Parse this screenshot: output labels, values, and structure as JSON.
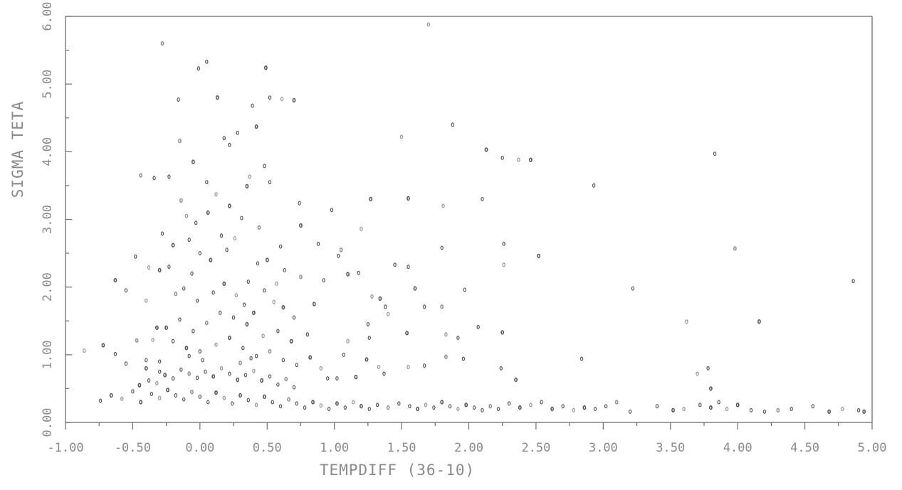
{
  "chart_data": {
    "type": "scatter",
    "title": "",
    "xlabel": "TEMPDIFF (36-10)",
    "ylabel": "SIGMA TETA",
    "xlim": [
      -1.0,
      5.0
    ],
    "ylim": [
      0.0,
      6.0
    ],
    "x_ticks": [
      "-1.00",
      "-0.50",
      "0.00",
      "0.50",
      "1.00",
      "1.50",
      "2.00",
      "2.50",
      "3.00",
      "3.50",
      "4.00",
      "4.50",
      "5.00"
    ],
    "y_ticks": [
      "0.00",
      "1.00",
      "2.00",
      "3.00",
      "4.00",
      "5.00",
      "6.00"
    ],
    "grid": false,
    "legend": "none",
    "point_color": "#3a3a3a",
    "series": [
      {
        "points": [
          [
            -0.28,
            5.6
          ],
          [
            -0.01,
            5.23
          ],
          [
            0.05,
            5.33
          ],
          [
            0.49,
            5.24
          ],
          [
            1.7,
            5.88
          ],
          [
            0.52,
            4.8
          ],
          [
            0.13,
            4.8
          ],
          [
            0.39,
            4.68
          ],
          [
            0.61,
            4.78
          ],
          [
            0.7,
            4.76
          ],
          [
            -0.16,
            4.77
          ],
          [
            0.18,
            4.2
          ],
          [
            -0.15,
            4.16
          ],
          [
            0.22,
            4.1
          ],
          [
            0.28,
            4.28
          ],
          [
            0.42,
            4.37
          ],
          [
            1.5,
            4.22
          ],
          [
            1.88,
            4.4
          ],
          [
            2.13,
            4.03
          ],
          [
            2.25,
            3.91
          ],
          [
            2.37,
            3.88
          ],
          [
            2.46,
            3.88
          ],
          [
            3.83,
            3.97
          ],
          [
            2.93,
            3.5
          ],
          [
            3.98,
            2.57
          ],
          [
            4.86,
            2.09
          ],
          [
            3.22,
            1.98
          ],
          [
            4.16,
            1.49
          ],
          [
            3.62,
            1.49
          ],
          [
            2.84,
            0.94
          ],
          [
            -0.05,
            3.85
          ],
          [
            0.48,
            3.79
          ],
          [
            0.37,
            3.63
          ],
          [
            0.35,
            3.49
          ],
          [
            0.52,
            3.55
          ],
          [
            -0.34,
            3.61
          ],
          [
            -0.44,
            3.65
          ],
          [
            -0.23,
            3.63
          ],
          [
            0.74,
            3.24
          ],
          [
            1.55,
            3.31
          ],
          [
            1.81,
            3.2
          ],
          [
            2.1,
            3.3
          ],
          [
            1.27,
            3.3
          ],
          [
            0.98,
            3.14
          ],
          [
            1.2,
            2.86
          ],
          [
            0.75,
            2.91
          ],
          [
            0.88,
            2.64
          ],
          [
            1.03,
            2.46
          ],
          [
            1.05,
            2.55
          ],
          [
            1.8,
            2.58
          ],
          [
            2.26,
            2.64
          ],
          [
            2.52,
            2.46
          ],
          [
            2.26,
            2.33
          ],
          [
            1.45,
            2.33
          ],
          [
            1.1,
            2.19
          ],
          [
            1.18,
            2.21
          ],
          [
            1.28,
            1.86
          ],
          [
            1.34,
            1.83
          ],
          [
            1.38,
            1.71
          ],
          [
            1.67,
            1.71
          ],
          [
            1.8,
            1.71
          ],
          [
            1.97,
            1.96
          ],
          [
            2.07,
            1.41
          ],
          [
            2.25,
            1.33
          ],
          [
            1.83,
            1.3
          ],
          [
            1.92,
            1.25
          ],
          [
            1.54,
            1.32
          ],
          [
            1.26,
            1.25
          ],
          [
            1.33,
            0.82
          ],
          [
            1.24,
            0.93
          ],
          [
            1.07,
            1.0
          ],
          [
            1.67,
            0.84
          ],
          [
            1.83,
            0.97
          ],
          [
            1.96,
            0.94
          ],
          [
            2.24,
            0.8
          ],
          [
            2.35,
            0.63
          ],
          [
            1.55,
            0.82
          ],
          [
            1.37,
            0.72
          ],
          [
            1.16,
            0.67
          ],
          [
            1.02,
            0.65
          ],
          [
            -0.86,
            1.06
          ],
          [
            -0.72,
            1.14
          ],
          [
            -0.63,
            1.01
          ],
          [
            -0.55,
            0.87
          ],
          [
            -0.47,
            1.21
          ],
          [
            -0.4,
            0.92
          ],
          [
            -0.3,
            0.75
          ],
          [
            -0.32,
            1.4
          ],
          [
            -0.4,
            1.8
          ],
          [
            -0.48,
            2.45
          ],
          [
            -0.63,
            2.1
          ],
          [
            -0.55,
            1.95
          ],
          [
            -0.38,
            2.29
          ],
          [
            -0.3,
            2.25
          ],
          [
            -0.23,
            2.3
          ],
          [
            -0.28,
            2.79
          ],
          [
            -0.14,
            3.28
          ],
          [
            -0.08,
            2.7
          ],
          [
            -0.03,
            2.95
          ],
          [
            0.06,
            3.1
          ],
          [
            0.12,
            3.37
          ],
          [
            0.16,
            2.76
          ],
          [
            0.22,
            3.2
          ],
          [
            0.31,
            3.02
          ],
          [
            0.26,
            2.72
          ],
          [
            0.08,
            2.4
          ],
          [
            -0.06,
            2.2
          ],
          [
            -0.12,
            1.98
          ],
          [
            -0.18,
            1.9
          ],
          [
            -0.02,
            1.8
          ],
          [
            0.1,
            1.92
          ],
          [
            0.18,
            2.05
          ],
          [
            0.27,
            1.88
          ],
          [
            0.33,
            1.74
          ],
          [
            0.4,
            1.62
          ],
          [
            0.48,
            1.95
          ],
          [
            0.55,
            1.78
          ],
          [
            0.62,
            1.7
          ],
          [
            0.7,
            1.55
          ],
          [
            0.63,
            2.25
          ],
          [
            0.75,
            2.15
          ],
          [
            0.43,
            2.35
          ],
          [
            0.36,
            2.08
          ],
          [
            0.5,
            2.4
          ],
          [
            0.57,
            2.05
          ],
          [
            0.8,
            1.3
          ],
          [
            0.68,
            1.2
          ],
          [
            0.58,
            1.35
          ],
          [
            0.47,
            1.28
          ],
          [
            0.35,
            1.45
          ],
          [
            0.25,
            1.55
          ],
          [
            0.15,
            1.62
          ],
          [
            0.05,
            1.47
          ],
          [
            -0.05,
            1.35
          ],
          [
            -0.15,
            1.52
          ],
          [
            -0.25,
            1.4
          ],
          [
            -0.35,
            1.22
          ],
          [
            -0.2,
            1.2
          ],
          [
            -0.1,
            1.1
          ],
          [
            0.0,
            1.05
          ],
          [
            0.12,
            1.15
          ],
          [
            0.22,
            1.25
          ],
          [
            0.32,
            1.1
          ],
          [
            0.42,
            0.98
          ],
          [
            0.52,
            1.05
          ],
          [
            0.62,
            0.92
          ],
          [
            0.72,
            0.85
          ],
          [
            0.82,
            0.96
          ],
          [
            0.9,
            0.8
          ],
          [
            0.95,
            0.65
          ],
          [
            -0.45,
            0.55
          ],
          [
            -0.38,
            0.62
          ],
          [
            -0.32,
            0.58
          ],
          [
            -0.26,
            0.7
          ],
          [
            -0.2,
            0.65
          ],
          [
            -0.14,
            0.78
          ],
          [
            -0.08,
            0.72
          ],
          [
            -0.02,
            0.66
          ],
          [
            0.04,
            0.75
          ],
          [
            0.1,
            0.68
          ],
          [
            0.16,
            0.8
          ],
          [
            0.22,
            0.72
          ],
          [
            0.28,
            0.63
          ],
          [
            0.34,
            0.7
          ],
          [
            0.4,
            0.76
          ],
          [
            0.46,
            0.62
          ],
          [
            0.52,
            0.68
          ],
          [
            0.58,
            0.56
          ],
          [
            0.64,
            0.64
          ],
          [
            0.7,
            0.52
          ],
          [
            -0.74,
            0.32
          ],
          [
            -0.66,
            0.4
          ],
          [
            -0.58,
            0.35
          ],
          [
            -0.5,
            0.46
          ],
          [
            -0.44,
            0.3
          ],
          [
            -0.36,
            0.42
          ],
          [
            -0.3,
            0.36
          ],
          [
            -0.24,
            0.48
          ],
          [
            -0.18,
            0.4
          ],
          [
            -0.12,
            0.34
          ],
          [
            -0.06,
            0.45
          ],
          [
            0.0,
            0.38
          ],
          [
            0.06,
            0.3
          ],
          [
            0.12,
            0.44
          ],
          [
            0.18,
            0.36
          ],
          [
            0.24,
            0.28
          ],
          [
            0.3,
            0.4
          ],
          [
            0.36,
            0.33
          ],
          [
            0.42,
            0.26
          ],
          [
            0.48,
            0.38
          ],
          [
            0.54,
            0.3
          ],
          [
            0.6,
            0.24
          ],
          [
            0.66,
            0.34
          ],
          [
            0.72,
            0.28
          ],
          [
            0.78,
            0.22
          ],
          [
            0.84,
            0.3
          ],
          [
            0.9,
            0.25
          ],
          [
            0.96,
            0.2
          ],
          [
            1.02,
            0.28
          ],
          [
            1.08,
            0.22
          ],
          [
            1.14,
            0.3
          ],
          [
            1.2,
            0.24
          ],
          [
            1.26,
            0.2
          ],
          [
            1.32,
            0.26
          ],
          [
            1.4,
            0.22
          ],
          [
            1.48,
            0.28
          ],
          [
            1.56,
            0.24
          ],
          [
            1.62,
            0.2
          ],
          [
            1.68,
            0.26
          ],
          [
            1.74,
            0.22
          ],
          [
            1.8,
            0.3
          ],
          [
            1.86,
            0.24
          ],
          [
            1.92,
            0.2
          ],
          [
            1.98,
            0.26
          ],
          [
            2.04,
            0.22
          ],
          [
            2.1,
            0.18
          ],
          [
            2.16,
            0.24
          ],
          [
            2.22,
            0.2
          ],
          [
            2.3,
            0.28
          ],
          [
            2.38,
            0.22
          ],
          [
            2.46,
            0.26
          ],
          [
            2.54,
            0.3
          ],
          [
            2.62,
            0.2
          ],
          [
            2.7,
            0.24
          ],
          [
            2.78,
            0.18
          ],
          [
            2.86,
            0.22
          ],
          [
            2.94,
            0.2
          ],
          [
            3.02,
            0.24
          ],
          [
            3.1,
            0.3
          ],
          [
            3.2,
            0.16
          ],
          [
            3.4,
            0.24
          ],
          [
            3.52,
            0.18
          ],
          [
            3.6,
            0.2
          ],
          [
            3.72,
            0.26
          ],
          [
            3.8,
            0.22
          ],
          [
            3.86,
            0.3
          ],
          [
            3.92,
            0.2
          ],
          [
            4.0,
            0.26
          ],
          [
            4.1,
            0.18
          ],
          [
            4.2,
            0.16
          ],
          [
            4.3,
            0.18
          ],
          [
            4.4,
            0.2
          ],
          [
            4.56,
            0.24
          ],
          [
            4.68,
            0.16
          ],
          [
            4.78,
            0.2
          ],
          [
            4.9,
            0.18
          ],
          [
            4.94,
            0.16
          ],
          [
            3.78,
            0.8
          ],
          [
            3.7,
            0.72
          ],
          [
            3.8,
            0.5
          ],
          [
            0.02,
            0.92
          ],
          [
            -0.08,
            0.98
          ],
          [
            0.3,
            0.88
          ],
          [
            0.38,
            0.95
          ],
          [
            -0.3,
            0.9
          ],
          [
            -0.4,
            0.8
          ],
          [
            1.4,
            1.6
          ],
          [
            1.55,
            2.3
          ],
          [
            1.6,
            1.98
          ],
          [
            1.25,
            1.45
          ],
          [
            1.1,
            1.2
          ],
          [
            0.85,
            1.75
          ],
          [
            0.92,
            2.1
          ],
          [
            0.6,
            2.6
          ],
          [
            0.44,
            2.88
          ],
          [
            0.2,
            2.55
          ],
          [
            0.0,
            2.5
          ],
          [
            -0.2,
            2.62
          ],
          [
            -0.1,
            3.05
          ],
          [
            0.05,
            3.55
          ]
        ]
      }
    ]
  }
}
